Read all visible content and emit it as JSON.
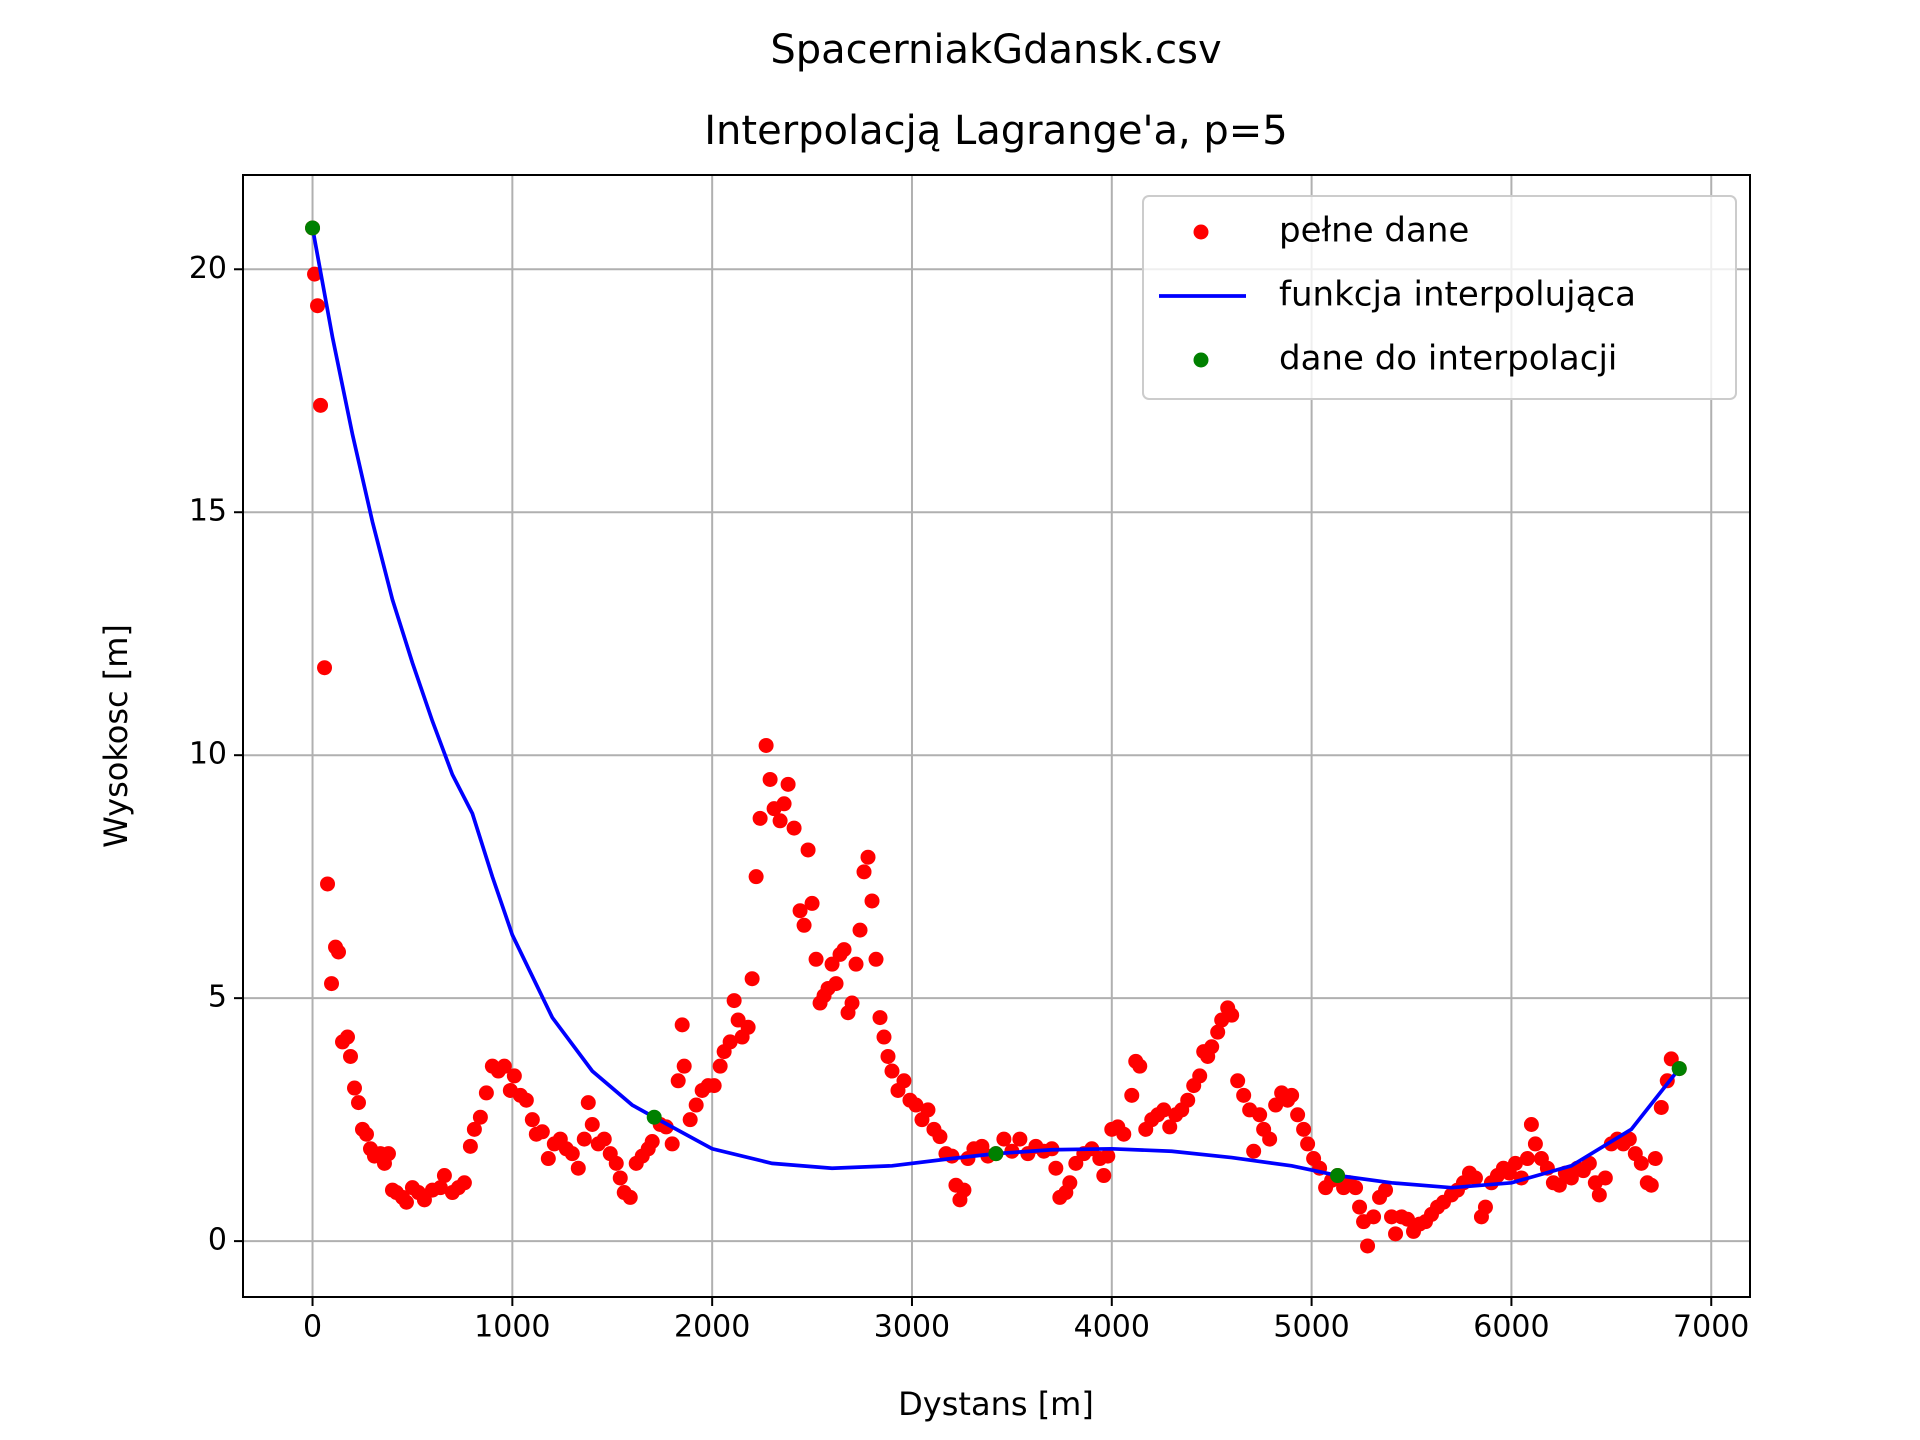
{
  "chart_data": {
    "type": "line",
    "title": "SpacerniakGdansk.csv",
    "subtitle": "Interpolacją Lagrange'a, p=5",
    "xlabel": "Dystans [m]",
    "ylabel": "Wysokosc [m]",
    "xlim": [
      -348,
      7194
    ],
    "ylim": [
      -1.15,
      21.94
    ],
    "xticks": [
      0,
      1000,
      2000,
      3000,
      4000,
      5000,
      6000,
      7000
    ],
    "yticks": [
      0,
      5,
      10,
      15,
      20
    ],
    "grid": true,
    "legend": "upper right",
    "series": [
      {
        "name": "pełne dane",
        "color": "#ff0000",
        "style": "points",
        "x": [
          0,
          10,
          25,
          40,
          60,
          75,
          95,
          115,
          130,
          150,
          175,
          190,
          210,
          230,
          250,
          270,
          290,
          310,
          340,
          360,
          380,
          400,
          420,
          450,
          470,
          500,
          530,
          560,
          600,
          640,
          660,
          700,
          730,
          760,
          790,
          810,
          840,
          870,
          900,
          930,
          960,
          990,
          1010,
          1040,
          1070,
          1100,
          1120,
          1150,
          1180,
          1210,
          1240,
          1270,
          1300,
          1330,
          1360,
          1380,
          1400,
          1430,
          1460,
          1490,
          1520,
          1540,
          1560,
          1590,
          1620,
          1650,
          1680,
          1700,
          1740,
          1770,
          1800,
          1830,
          1850,
          1860,
          1890,
          1920,
          1950,
          1980,
          2010,
          2040,
          2060,
          2090,
          2110,
          2130,
          2150,
          2180,
          2200,
          2220,
          2240,
          2270,
          2290,
          2310,
          2340,
          2360,
          2380,
          2410,
          2440,
          2460,
          2480,
          2500,
          2520,
          2540,
          2560,
          2580,
          2600,
          2620,
          2640,
          2660,
          2680,
          2700,
          2720,
          2740,
          2760,
          2780,
          2800,
          2820,
          2840,
          2860,
          2880,
          2900,
          2930,
          2960,
          2990,
          3020,
          3050,
          3080,
          3110,
          3140,
          3170,
          3200,
          3220,
          3240,
          3260,
          3280,
          3310,
          3350,
          3380,
          3420,
          3460,
          3500,
          3540,
          3580,
          3620,
          3660,
          3700,
          3720,
          3740,
          3770,
          3790,
          3820,
          3860,
          3900,
          3940,
          3960,
          3980,
          4000,
          4030,
          4060,
          4100,
          4120,
          4140,
          4170,
          4200,
          4230,
          4260,
          4290,
          4320,
          4350,
          4380,
          4410,
          4440,
          4460,
          4480,
          4500,
          4530,
          4550,
          4580,
          4600,
          4630,
          4660,
          4690,
          4710,
          4740,
          4760,
          4790,
          4820,
          4850,
          4880,
          4900,
          4930,
          4960,
          4980,
          5010,
          5040,
          5070,
          5100,
          5130,
          5160,
          5190,
          5220,
          5240,
          5260,
          5280,
          5310,
          5340,
          5370,
          5400,
          5420,
          5450,
          5480,
          5510,
          5540,
          5570,
          5600,
          5630,
          5660,
          5700,
          5730,
          5760,
          5790,
          5820,
          5850,
          5870,
          5900,
          5930,
          5960,
          5990,
          6020,
          6050,
          6080,
          6100,
          6120,
          6150,
          6180,
          6210,
          6240,
          6270,
          6300,
          6330,
          6360,
          6390,
          6420,
          6440,
          6470,
          6500,
          6530,
          6560,
          6590,
          6620,
          6650,
          6680,
          6700,
          6720,
          6750,
          6780,
          6800,
          6840
        ],
        "values": [
          20.85,
          19.9,
          19.25,
          17.2,
          11.8,
          7.35,
          5.3,
          6.05,
          5.95,
          4.1,
          4.2,
          3.8,
          3.15,
          2.85,
          2.3,
          2.2,
          1.9,
          1.75,
          1.8,
          1.6,
          1.8,
          1.05,
          1.0,
          0.9,
          0.8,
          1.1,
          1.0,
          0.85,
          1.05,
          1.1,
          1.35,
          1.0,
          1.1,
          1.2,
          1.95,
          2.3,
          2.55,
          3.05,
          3.6,
          3.5,
          3.6,
          3.1,
          3.4,
          3.0,
          2.9,
          2.5,
          2.2,
          2.25,
          1.7,
          2.0,
          2.1,
          1.9,
          1.8,
          1.5,
          2.1,
          2.85,
          2.4,
          2.0,
          2.1,
          1.8,
          1.6,
          1.3,
          1.0,
          0.9,
          1.6,
          1.75,
          1.9,
          2.05,
          2.4,
          2.35,
          2.0,
          3.3,
          4.45,
          3.6,
          2.5,
          2.8,
          3.1,
          3.2,
          3.2,
          3.6,
          3.9,
          4.1,
          4.95,
          4.55,
          4.2,
          4.4,
          5.4,
          7.5,
          8.7,
          10.2,
          9.5,
          8.9,
          8.65,
          9.0,
          9.4,
          8.5,
          6.8,
          6.5,
          8.05,
          6.95,
          5.8,
          4.9,
          5.05,
          5.2,
          5.7,
          5.3,
          5.9,
          6.0,
          4.7,
          4.9,
          5.7,
          6.4,
          7.6,
          7.9,
          7.0,
          5.8,
          4.6,
          4.2,
          3.8,
          3.5,
          3.1,
          3.3,
          2.9,
          2.8,
          2.5,
          2.7,
          2.3,
          2.15,
          1.8,
          1.75,
          1.15,
          0.85,
          1.05,
          1.7,
          1.9,
          1.95,
          1.75,
          1.8,
          2.1,
          1.85,
          2.1,
          1.8,
          1.95,
          1.85,
          1.9,
          1.5,
          0.9,
          1.0,
          1.2,
          1.6,
          1.8,
          1.9,
          1.7,
          1.35,
          1.75,
          2.3,
          2.35,
          2.2,
          3.0,
          3.7,
          3.6,
          2.3,
          2.5,
          2.6,
          2.7,
          2.35,
          2.6,
          2.7,
          2.9,
          3.2,
          3.4,
          3.9,
          3.8,
          4.0,
          4.3,
          4.55,
          4.8,
          4.65,
          3.3,
          3.0,
          2.7,
          1.85,
          2.6,
          2.3,
          2.1,
          2.8,
          3.05,
          2.9,
          3.0,
          2.6,
          2.3,
          2.0,
          1.7,
          1.5,
          1.1,
          1.25,
          1.35,
          1.1,
          1.2,
          1.1,
          0.7,
          0.4,
          -0.1,
          0.5,
          0.9,
          1.05,
          0.5,
          0.15,
          0.5,
          0.45,
          0.2,
          0.35,
          0.4,
          0.55,
          0.7,
          0.8,
          0.95,
          1.05,
          1.2,
          1.4,
          1.3,
          0.5,
          0.7,
          1.2,
          1.35,
          1.5,
          1.4,
          1.6,
          1.3,
          1.7,
          2.4,
          2.0,
          1.7,
          1.5,
          1.2,
          1.15,
          1.4,
          1.3,
          1.5,
          1.45,
          1.6,
          1.2,
          0.95,
          1.3,
          2.0,
          2.1,
          2.0,
          2.1,
          1.8,
          1.6,
          1.2,
          1.15,
          1.7,
          2.75,
          3.3,
          3.75,
          3.55
        ]
      },
      {
        "name": "funkcja interpolująca",
        "color": "#0000ff",
        "style": "line",
        "x": [
          0,
          100,
          200,
          300,
          400,
          500,
          600,
          700,
          800,
          900,
          1000,
          1200,
          1400,
          1600,
          1710,
          2000,
          2300,
          2600,
          2900,
          3200,
          3420,
          3700,
          4000,
          4300,
          4600,
          4900,
          5130,
          5400,
          5700,
          6000,
          6300,
          6600,
          6840
        ],
        "values": [
          20.85,
          18.6,
          16.6,
          14.8,
          13.2,
          11.9,
          10.7,
          9.6,
          8.8,
          7.5,
          6.3,
          4.6,
          3.5,
          2.8,
          2.55,
          1.9,
          1.6,
          1.5,
          1.55,
          1.7,
          1.8,
          1.88,
          1.9,
          1.85,
          1.72,
          1.55,
          1.35,
          1.2,
          1.1,
          1.2,
          1.55,
          2.3,
          3.55
        ]
      },
      {
        "name": "dane do interpolacji",
        "color": "#008000",
        "style": "points",
        "x": [
          0,
          1710,
          3420,
          5130,
          6840
        ],
        "values": [
          20.85,
          2.55,
          1.8,
          1.35,
          3.55
        ]
      }
    ]
  }
}
